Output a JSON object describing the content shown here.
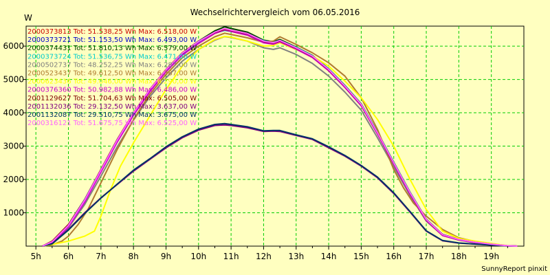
{
  "chart_data": {
    "type": "line",
    "title": "Wechselrichtervergleich vom 06.05.2016",
    "ylabel": "W",
    "xlabel": "",
    "footer": "SunnyReport pinxit",
    "xlim": [
      4.7,
      20.0
    ],
    "ylim": [
      0,
      6600
    ],
    "x_ticks": [
      5,
      6,
      7,
      8,
      9,
      10,
      11,
      12,
      13,
      14,
      15,
      16,
      17,
      18,
      19
    ],
    "x_tick_labels": [
      "5h",
      "6h",
      "7h",
      "8h",
      "9h",
      "10h",
      "11h",
      "12h",
      "13h",
      "14h",
      "15h",
      "16h",
      "17h",
      "18h",
      "19h"
    ],
    "y_ticks": [
      1000,
      2000,
      3000,
      4000,
      5000,
      6000
    ],
    "y_tick_labels": [
      "1000",
      "2000",
      "3000",
      "4000",
      "5000",
      "6000"
    ],
    "grid": true,
    "grid_color": "#00cc00",
    "background": "#ffffc0",
    "legend_position": "top-left",
    "series": [
      {
        "name": "2000373813",
        "legend": "Tot: 51.538,25 Wh Max: 6.518,00 W",
        "color": "#cc0000",
        "x": [
          5.2,
          5.5,
          6,
          6.5,
          7,
          7.5,
          8,
          8.5,
          9,
          9.5,
          10,
          10.5,
          10.8,
          11,
          11.5,
          12,
          12.3,
          12.5,
          13,
          13.5,
          14,
          14.5,
          15,
          15.5,
          16,
          16.5,
          17,
          17.5,
          18,
          18.5,
          19,
          19.5,
          19.8
        ],
        "y": [
          0,
          150,
          650,
          1400,
          2300,
          3200,
          4000,
          4700,
          5300,
          5800,
          6150,
          6420,
          6518,
          6480,
          6380,
          6150,
          6100,
          6180,
          5950,
          5700,
          5300,
          4800,
          4250,
          3400,
          2500,
          1600,
          800,
          350,
          200,
          120,
          60,
          10,
          0
        ]
      },
      {
        "name": "2000373721",
        "legend": "Tot: 51.153,50 Wh Max: 6.493,00 W",
        "color": "#0000cc",
        "x": [
          5.2,
          5.5,
          6,
          6.5,
          7,
          7.5,
          8,
          8.5,
          9,
          9.5,
          10,
          10.5,
          10.8,
          11,
          11.5,
          12,
          12.3,
          12.5,
          13,
          13.5,
          14,
          14.5,
          15,
          15.5,
          16,
          16.5,
          17,
          17.5,
          18,
          18.5,
          19,
          19.5,
          19.8
        ],
        "y": [
          0,
          120,
          600,
          1350,
          2250,
          3150,
          3950,
          4650,
          5250,
          5750,
          6100,
          6400,
          6493,
          6450,
          6350,
          6120,
          6080,
          6150,
          5930,
          5680,
          5280,
          4780,
          4230,
          3380,
          2480,
          1580,
          780,
          330,
          190,
          110,
          55,
          8,
          0
        ]
      },
      {
        "name": "2000374431",
        "legend": "Tot: 51.810,13 Wh Max: 6.579,00 W",
        "color": "#004400",
        "x": [
          5.2,
          5.5,
          6,
          6.5,
          7,
          7.5,
          8,
          8.5,
          9,
          9.5,
          10,
          10.5,
          10.8,
          11,
          11.5,
          12,
          12.3,
          12.5,
          13,
          13.5,
          14,
          14.5,
          15,
          15.5,
          16,
          16.5,
          17,
          17.5,
          18,
          18.5,
          19,
          19.5,
          19.8
        ],
        "y": [
          0,
          130,
          620,
          1380,
          2280,
          3180,
          3980,
          4680,
          5280,
          5780,
          6150,
          6460,
          6579,
          6530,
          6420,
          6180,
          6130,
          6200,
          5970,
          5720,
          5320,
          4820,
          4270,
          3420,
          2520,
          1620,
          810,
          350,
          200,
          120,
          60,
          10,
          0
        ]
      },
      {
        "name": "2000373724",
        "legend": "Tot: 51.536,75 Wh Max: 6.471,00 W",
        "color": "#00cccc",
        "x": [
          5.2,
          5.5,
          6,
          6.5,
          7,
          7.5,
          8,
          8.5,
          9,
          9.5,
          10,
          10.5,
          10.8,
          11,
          11.5,
          12,
          12.3,
          12.5,
          13,
          13.5,
          14,
          14.5,
          15,
          15.5,
          16,
          16.5,
          17,
          17.5,
          18,
          18.5,
          19,
          19.5,
          19.8
        ],
        "y": [
          0,
          140,
          640,
          1400,
          2290,
          3190,
          3990,
          4690,
          5290,
          5790,
          6130,
          6390,
          6471,
          6440,
          6370,
          6160,
          6110,
          6170,
          5960,
          5710,
          5310,
          4810,
          4260,
          3410,
          2510,
          1610,
          800,
          340,
          195,
          115,
          58,
          9,
          0
        ]
      },
      {
        "name": "2000502737",
        "legend": "Tot: 48.252,25 Wh Max: 6.287,00 W",
        "color": "#808080",
        "x": [
          5.2,
          5.5,
          6,
          6.5,
          7,
          7.5,
          8,
          8.5,
          9,
          9.5,
          10,
          10.5,
          10.8,
          11,
          11.5,
          12,
          12.3,
          12.5,
          13,
          13.5,
          14,
          14.5,
          15,
          15.5,
          16,
          16.5,
          17,
          17.5,
          18,
          18.5,
          19,
          19.5,
          19.8
        ],
        "y": [
          0,
          100,
          550,
          1250,
          2100,
          2980,
          3780,
          4480,
          5050,
          5550,
          5900,
          6180,
          6287,
          6260,
          6150,
          5950,
          5900,
          5950,
          5750,
          5480,
          5100,
          4620,
          4080,
          3250,
          2380,
          1520,
          750,
          320,
          180,
          100,
          50,
          8,
          0
        ]
      },
      {
        "name": "2000523437",
        "legend": "Tot: 49.612,50 Wh Max: 6.387,00 W",
        "color": "#b07a30",
        "x": [
          5.2,
          5.5,
          5.8,
          6,
          6.3,
          6.6,
          7,
          7.5,
          8,
          8.5,
          9,
          9.5,
          10,
          10.5,
          10.8,
          11,
          11.5,
          12,
          12.3,
          12.5,
          13,
          13.5,
          14,
          14.5,
          15,
          15.5,
          16,
          16.3,
          16.6,
          17,
          17.5,
          18,
          18.5,
          19,
          19.5,
          19.8
        ],
        "y": [
          0,
          40,
          150,
          300,
          650,
          1100,
          1900,
          2900,
          3800,
          4550,
          5150,
          5650,
          6000,
          6280,
          6387,
          6350,
          6250,
          6120,
          6150,
          6280,
          6050,
          5800,
          5500,
          5100,
          4450,
          3500,
          2300,
          1750,
          1300,
          900,
          500,
          250,
          140,
          70,
          10,
          0
        ]
      },
      {
        "name": "2000623436",
        "legend": "Tot: 49.046,00 Wh Max: 6.290,00 W",
        "color": "#ffff00",
        "x": [
          5.2,
          5.5,
          6,
          6.5,
          6.8,
          7,
          7.3,
          7.6,
          8,
          8.5,
          9,
          9.5,
          10,
          10.5,
          10.8,
          11,
          11.5,
          12,
          12.3,
          12.5,
          13,
          13.5,
          14,
          14.5,
          15,
          15.5,
          16,
          16.5,
          17,
          17.5,
          18,
          18.5,
          19,
          19.5,
          19.8
        ],
        "y": [
          0,
          50,
          150,
          300,
          450,
          900,
          1700,
          2400,
          3100,
          3900,
          4700,
          5400,
          5900,
          6200,
          6290,
          6270,
          6150,
          6000,
          6020,
          6100,
          5900,
          5700,
          5400,
          4950,
          4450,
          3800,
          3000,
          2000,
          1100,
          450,
          230,
          150,
          80,
          10,
          0
        ]
      },
      {
        "name": "2000376360",
        "legend": "Tot: 50.982,88 Wh Max: 6.486,00 W",
        "color": "#cc00cc",
        "x": [
          5.2,
          5.5,
          6,
          6.5,
          7,
          7.5,
          8,
          8.5,
          9,
          9.5,
          10,
          10.5,
          10.8,
          11,
          11.5,
          12,
          12.3,
          12.5,
          13,
          13.5,
          14,
          14.5,
          15,
          15.5,
          16,
          16.5,
          17,
          17.5,
          18,
          18.5,
          19,
          19.5,
          19.8
        ],
        "y": [
          0,
          110,
          580,
          1320,
          2220,
          3120,
          3930,
          4630,
          5230,
          5730,
          6080,
          6380,
          6486,
          6440,
          6330,
          6100,
          6060,
          6130,
          5910,
          5660,
          5260,
          4760,
          4210,
          3360,
          2460,
          1560,
          770,
          320,
          185,
          105,
          52,
          8,
          0
        ]
      },
      {
        "name": "2001129627",
        "legend": "Tot: 51.704,63 Wh Max: 6.505,00 W",
        "color": "#800000",
        "x": [
          5.2,
          5.5,
          6,
          6.5,
          7,
          7.5,
          8,
          8.5,
          9,
          9.5,
          10,
          10.5,
          10.8,
          11,
          11.5,
          12,
          12.3,
          12.5,
          13,
          13.5,
          14,
          14.5,
          15,
          15.5,
          16,
          16.5,
          17,
          17.5,
          18,
          18.5,
          19,
          19.5,
          19.8
        ],
        "y": [
          0,
          140,
          640,
          1390,
          2290,
          3190,
          3990,
          4690,
          5290,
          5790,
          6140,
          6410,
          6505,
          6470,
          6370,
          6140,
          6090,
          6160,
          5940,
          5690,
          5290,
          4790,
          4240,
          3390,
          2490,
          1590,
          790,
          340,
          195,
          115,
          58,
          9,
          0
        ]
      },
      {
        "name": "2001132036",
        "legend": "Tot: 29.132,50 Wh Max: 3.637,00 W",
        "color": "#800080",
        "x": [
          5.2,
          5.5,
          6,
          6.5,
          7,
          7.5,
          8,
          8.5,
          9,
          9.5,
          10,
          10.5,
          10.8,
          11,
          11.5,
          12,
          12.3,
          12.5,
          13,
          13.5,
          14,
          14.5,
          15,
          15.5,
          16,
          16.5,
          17,
          17.5,
          18,
          18.5,
          19,
          19.5,
          19.8
        ],
        "y": [
          0,
          80,
          500,
          1000,
          1450,
          1850,
          2250,
          2600,
          2950,
          3250,
          3480,
          3620,
          3637,
          3620,
          3550,
          3440,
          3450,
          3440,
          3320,
          3200,
          2950,
          2700,
          2400,
          2050,
          1580,
          1020,
          450,
          160,
          90,
          60,
          30,
          5,
          0
        ]
      },
      {
        "name": "2001132087",
        "legend": "Tot: 29.510,75 Wh Max: 3.675,00 W",
        "color": "#003366",
        "x": [
          5.2,
          5.5,
          6,
          6.5,
          7,
          7.5,
          8,
          8.5,
          9,
          9.5,
          10,
          10.5,
          10.8,
          11,
          11.5,
          12,
          12.3,
          12.5,
          13,
          13.5,
          14,
          14.5,
          15,
          15.5,
          16,
          16.5,
          17,
          17.5,
          18,
          18.5,
          19,
          19.5,
          19.8
        ],
        "y": [
          0,
          70,
          480,
          980,
          1440,
          1860,
          2280,
          2620,
          2980,
          3280,
          3510,
          3650,
          3675,
          3650,
          3580,
          3460,
          3470,
          3470,
          3340,
          3220,
          2980,
          2720,
          2420,
          2070,
          1600,
          1040,
          460,
          170,
          95,
          62,
          32,
          6,
          0
        ]
      },
      {
        "name": "2000316121",
        "legend": "Tot: 51.675,75 Wh Max: 6.525,00 W",
        "color": "#ff60ff",
        "x": [
          5.2,
          5.5,
          6,
          6.5,
          7,
          7.5,
          8,
          8.5,
          9,
          9.5,
          10,
          10.5,
          10.8,
          11,
          11.5,
          12,
          12.3,
          12.5,
          13,
          13.5,
          14,
          14.5,
          15,
          15.5,
          16,
          16.5,
          17,
          17.5,
          18,
          18.5,
          19,
          19.5,
          19.8
        ],
        "y": [
          0,
          130,
          620,
          1380,
          2280,
          3180,
          3990,
          4690,
          5290,
          5790,
          6140,
          6420,
          6525,
          6480,
          6380,
          6150,
          6100,
          6170,
          5950,
          5700,
          5300,
          4800,
          4250,
          3400,
          2500,
          1600,
          800,
          345,
          198,
          118,
          60,
          10,
          0
        ]
      }
    ]
  }
}
